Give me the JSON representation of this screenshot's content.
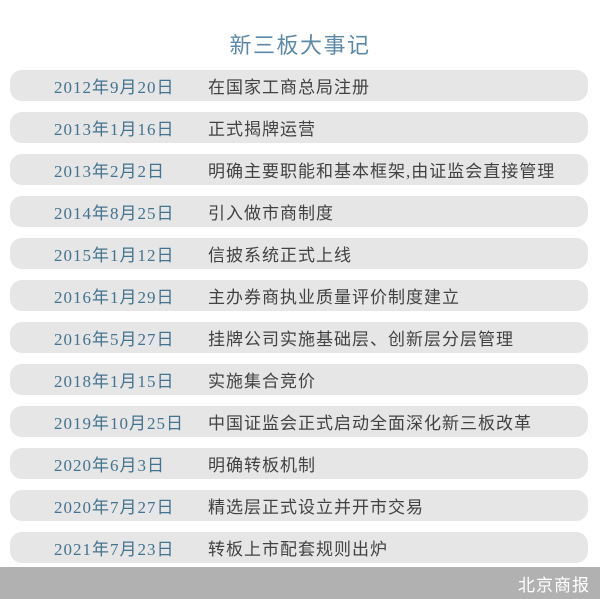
{
  "page": {
    "title": "新三板大事记"
  },
  "colors": {
    "background": "#ffffff",
    "title": "#5d89a8",
    "date": "#44738f",
    "event": "#424242",
    "row_bg": "#e6e6e6",
    "footer_bg": "#b1b1b1",
    "footer_text": "#ffffff"
  },
  "timeline": [
    {
      "date": "2012年9月20日",
      "event": "在国家工商总局注册"
    },
    {
      "date": "2013年1月16日",
      "event": "正式揭牌运营"
    },
    {
      "date": "2013年2月2日",
      "event": "明确主要职能和基本框架,由证监会直接管理"
    },
    {
      "date": "2014年8月25日",
      "event": "引入做市商制度"
    },
    {
      "date": "2015年1月12日",
      "event": "信披系统正式上线"
    },
    {
      "date": "2016年1月29日",
      "event": "主办券商执业质量评价制度建立"
    },
    {
      "date": "2016年5月27日",
      "event": "挂牌公司实施基础层、创新层分层管理"
    },
    {
      "date": "2018年1月15日",
      "event": "实施集合竞价"
    },
    {
      "date": "2019年10月25日",
      "event": "中国证监会正式启动全面深化新三板改革"
    },
    {
      "date": "2020年6月3日",
      "event": "明确转板机制"
    },
    {
      "date": "2020年7月27日",
      "event": "精选层正式设立并开市交易"
    },
    {
      "date": "2021年7月23日",
      "event": "转板上市配套规则出炉"
    }
  ],
  "footer": {
    "brand": "北京商报"
  }
}
